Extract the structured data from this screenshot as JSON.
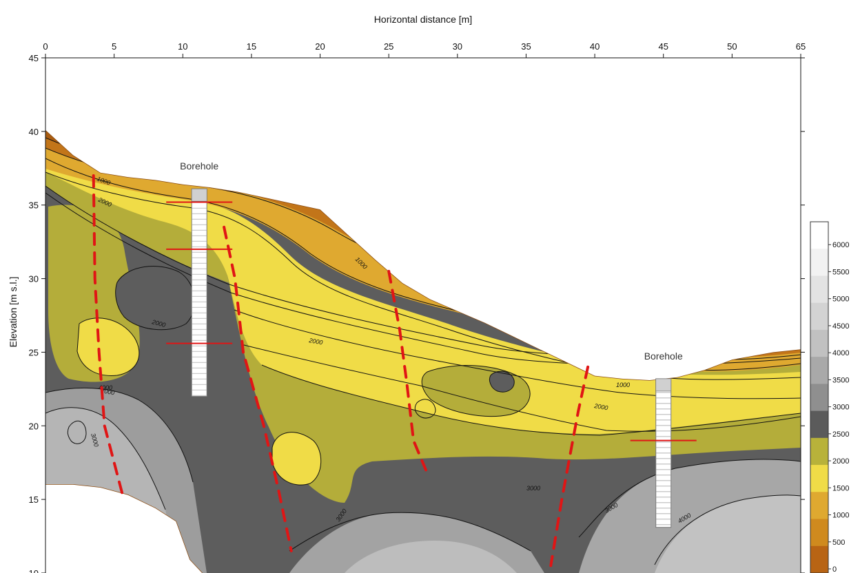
{
  "chart_data": {
    "type": "heatmap",
    "title": "",
    "xlabel": "Horizontal distance [m]",
    "ylabel": "Elevation [m s.l.]",
    "xlim": [
      0,
      55
    ],
    "ylim": [
      10,
      45
    ],
    "x_ticks": [
      "0",
      "5",
      "10",
      "15",
      "20",
      "25",
      "30",
      "35",
      "40",
      "45",
      "50",
      "65"
    ],
    "y_ticks": [
      45,
      40,
      35,
      30,
      25,
      20,
      15,
      10
    ],
    "x_axis_position": "top",
    "grid": false,
    "surface_profile": [
      [
        0,
        40.1
      ],
      [
        2,
        38.4
      ],
      [
        4,
        37.2
      ],
      [
        6,
        36.9
      ],
      [
        8,
        36.7
      ],
      [
        10,
        36.4
      ],
      [
        12,
        36.2
      ],
      [
        14,
        35.9
      ],
      [
        16,
        35.5
      ],
      [
        18,
        35.1
      ],
      [
        20,
        34.7
      ],
      [
        22,
        33.0
      ],
      [
        24,
        31.3
      ],
      [
        26,
        29.7
      ],
      [
        28,
        28.6
      ],
      [
        30,
        27.8
      ],
      [
        32,
        27.0
      ],
      [
        34,
        26.1
      ],
      [
        36,
        25.2
      ],
      [
        38,
        24.3
      ],
      [
        40,
        23.4
      ],
      [
        42,
        23.2
      ],
      [
        44,
        23.1
      ],
      [
        46,
        23.3
      ],
      [
        48,
        23.8
      ],
      [
        50,
        24.5
      ],
      [
        53,
        25.0
      ],
      [
        55,
        25.2
      ]
    ],
    "base_profile": [
      [
        0,
        16.0
      ],
      [
        2,
        16.0
      ],
      [
        4,
        15.8
      ],
      [
        6,
        15.3
      ],
      [
        8,
        14.4
      ],
      [
        9.5,
        13.5
      ],
      [
        10.5,
        10.9
      ],
      [
        11.4,
        10.0
      ]
    ],
    "colorbar": {
      "labels": [
        "6000",
        "5500",
        "5000",
        "4500",
        "4000",
        "3500",
        "3000",
        "2500",
        "2000",
        "1500",
        "1000",
        "500",
        "0"
      ],
      "colors": [
        "#ffffff",
        "#f2f2f2",
        "#e3e3e3",
        "#d3d3d3",
        "#c1c1c1",
        "#a9a9a9",
        "#8f8f8f",
        "#5b5b5b",
        "#b8b23a",
        "#f0dc47",
        "#dfa930",
        "#cf8a1e",
        "#b86414"
      ]
    },
    "contour_labels": [
      "1000",
      "2000",
      "2000",
      "2000",
      "2000",
      "3000",
      "4000",
      "3000",
      "3000",
      "4000",
      "1000",
      "2000",
      "1000",
      "3000"
    ],
    "boreholes": [
      {
        "label": "Borehole",
        "x": 11.2,
        "top": 36.1,
        "bottom": 22.0,
        "interfaces": [
          35.2,
          32.0,
          25.6
        ]
      },
      {
        "label": "Borehole",
        "x": 45.0,
        "top": 23.2,
        "bottom": 13.1,
        "interfaces": [
          19.0
        ]
      }
    ],
    "fault_lines": [
      [
        [
          3.5,
          37.0
        ],
        [
          3.6,
          30.0
        ],
        [
          3.9,
          25.0
        ],
        [
          4.3,
          20.0
        ],
        [
          5.7,
          15.0
        ]
      ],
      [
        [
          13.0,
          33.5
        ],
        [
          13.8,
          30.0
        ],
        [
          14.4,
          25.0
        ],
        [
          15.9,
          20.0
        ],
        [
          17.0,
          15.5
        ],
        [
          17.9,
          11.5
        ]
      ],
      [
        [
          25.0,
          30.5
        ],
        [
          25.8,
          26.5
        ],
        [
          26.3,
          23.0
        ],
        [
          26.8,
          19.0
        ],
        [
          27.7,
          17.0
        ]
      ],
      [
        [
          39.5,
          24.0
        ],
        [
          38.8,
          21.0
        ],
        [
          38.2,
          18.0
        ],
        [
          37.6,
          15.0
        ],
        [
          36.8,
          10.5
        ]
      ]
    ]
  }
}
